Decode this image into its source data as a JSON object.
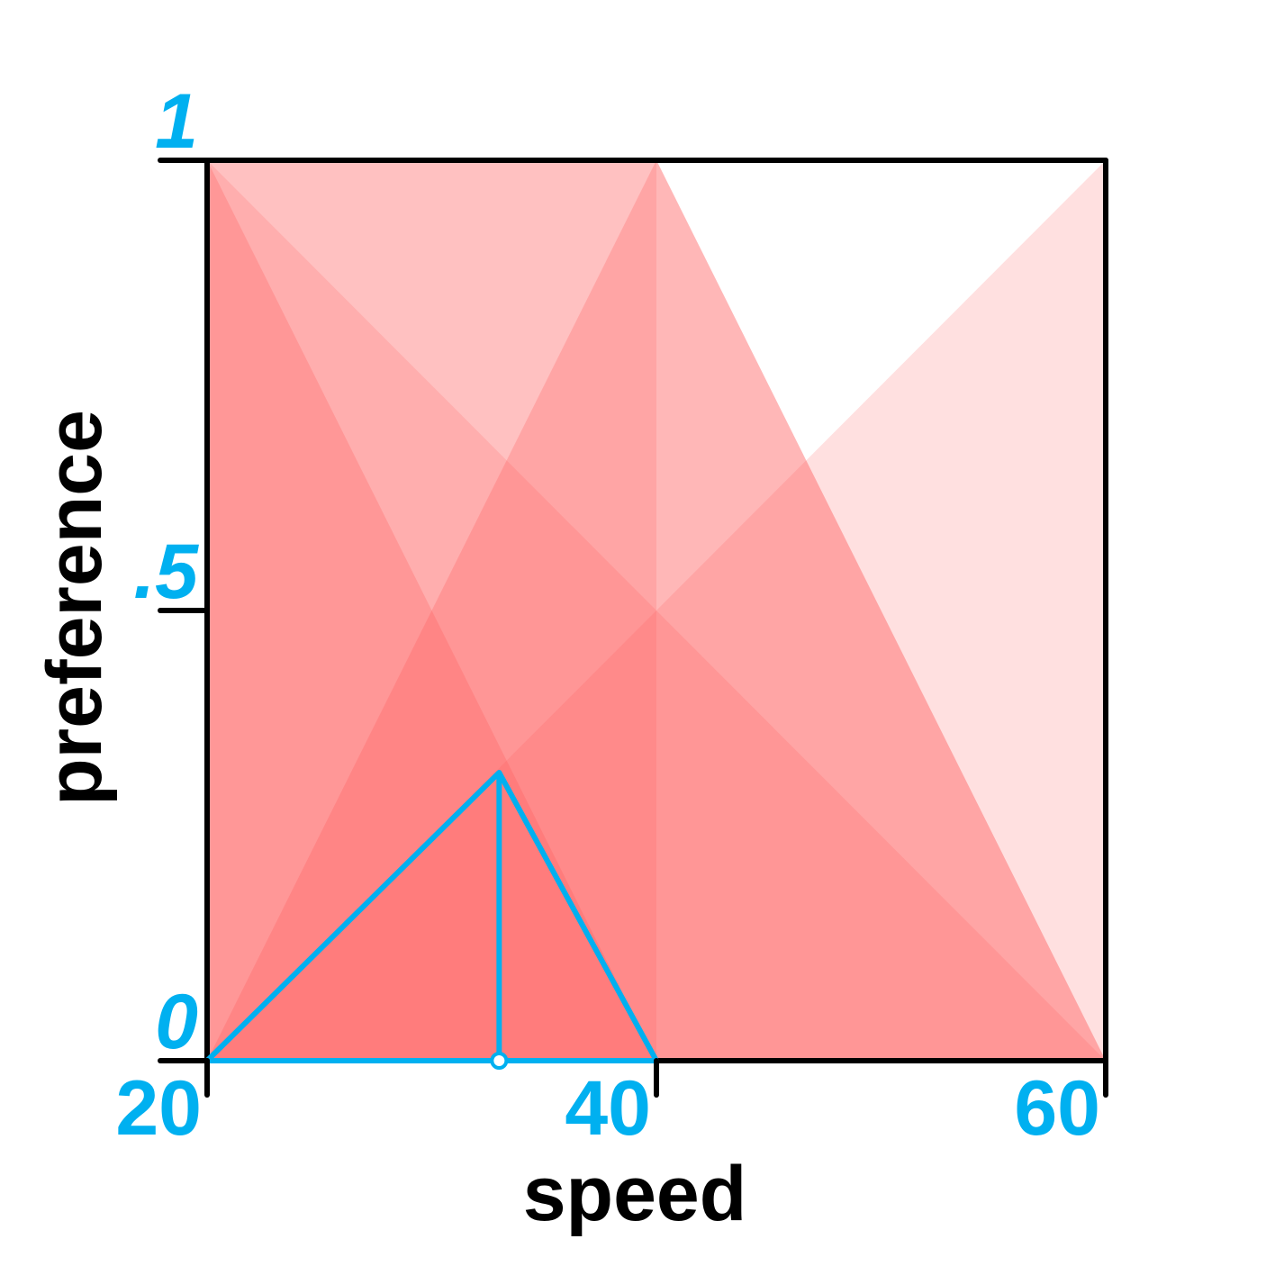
{
  "chart_data": {
    "type": "area",
    "xlabel": "speed",
    "ylabel": "preference",
    "xlim": [
      20,
      60
    ],
    "ylim": [
      0,
      1
    ],
    "x_ticks": [
      {
        "value": 20,
        "label": "20"
      },
      {
        "value": 40,
        "label": "40"
      },
      {
        "value": 60,
        "label": "60"
      }
    ],
    "y_ticks": [
      {
        "value": 0,
        "label": "0"
      },
      {
        "value": 0.5,
        "label": ".5"
      },
      {
        "value": 1,
        "label": "1"
      }
    ],
    "grid": false,
    "colors": {
      "fill": "#ff5555",
      "highlight": "#00b0f0",
      "axis": "#000000",
      "tick_label": "#00b0f0"
    },
    "series": [
      {
        "points": [
          [
            20,
            1
          ],
          [
            20,
            0
          ],
          [
            60,
            0
          ]
        ],
        "opacity": 0.18
      },
      {
        "points": [
          [
            20,
            0
          ],
          [
            60,
            1
          ],
          [
            60,
            0
          ]
        ],
        "opacity": 0.18
      },
      {
        "points": [
          [
            20,
            0
          ],
          [
            20,
            1
          ],
          [
            40,
            1
          ],
          [
            60,
            0
          ]
        ],
        "opacity": 0.22
      },
      {
        "points": [
          [
            20,
            0
          ],
          [
            40,
            1
          ],
          [
            60,
            0
          ]
        ],
        "opacity": 0.26
      },
      {
        "points": [
          [
            20,
            1
          ],
          [
            40,
            0
          ],
          [
            20,
            0
          ]
        ],
        "opacity": 0.24
      },
      {
        "points": [
          [
            20,
            0
          ],
          [
            20,
            1
          ],
          [
            40,
            1
          ],
          [
            40,
            0
          ]
        ],
        "opacity": 0.18
      }
    ],
    "highlight": {
      "outline": [
        [
          20,
          0
        ],
        [
          33,
          0.32
        ],
        [
          40,
          0
        ],
        [
          20,
          0
        ]
      ],
      "drop_line": [
        [
          33,
          0.32
        ],
        [
          33,
          0
        ]
      ],
      "marker": [
        33,
        0
      ]
    }
  }
}
